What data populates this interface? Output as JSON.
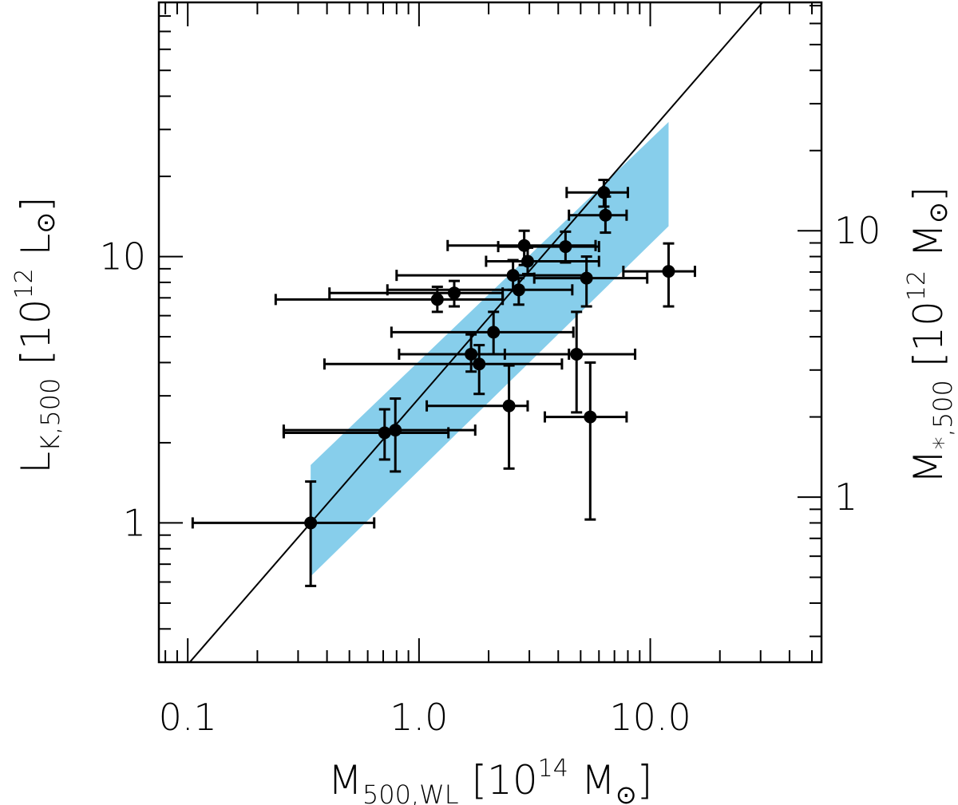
{
  "chart_data": {
    "type": "scatter",
    "xlabel": {
      "main": "M",
      "sub": "500,WL",
      "rest_open": " [10",
      "sup": "14",
      "rest_close": "   M",
      "sun": "⊙",
      "bracket": "]"
    },
    "ylabel": {
      "main": "L",
      "sub": "K,500",
      "rest_open": " [10",
      "sup": "12",
      "rest_close": " L",
      "sun": "⊙",
      "bracket": "]"
    },
    "y2label": {
      "main": "M",
      "sub": "*,500",
      "rest_open": " [10",
      "sup": "12",
      "rest_close": " M",
      "sun": "⊙",
      "bracket": "]"
    },
    "x_scale": "log",
    "y_scale": "log",
    "xlim": [
      0.075,
      55
    ],
    "ylim": [
      0.3,
      90
    ],
    "y2_factor": 0.8,
    "x_tick_labels": [
      {
        "value": 0.1,
        "label": "0.1"
      },
      {
        "value": 1.0,
        "label": "1.0"
      },
      {
        "value": 10.0,
        "label": "10.0"
      }
    ],
    "y_tick_labels": [
      {
        "value": 1,
        "label": "1"
      },
      {
        "value": 10,
        "label": "10"
      }
    ],
    "y2_tick_labels": [
      {
        "value": 1,
        "label": "1"
      },
      {
        "value": 10,
        "label": "10"
      }
    ],
    "fit_line": {
      "slope": 1.0,
      "norm_x": 0.34,
      "norm_y": 1.0,
      "color": "#000000"
    },
    "confidence_band": {
      "color": "#87CEEB",
      "x": [
        0.34,
        12.0
      ],
      "upper": [
        1.65,
        32.0
      ],
      "lower": [
        0.63,
        13.0
      ]
    },
    "points": [
      {
        "x": 0.34,
        "y": 1.0,
        "xerr": [
          0.105,
          0.64
        ],
        "yerr": [
          0.58,
          1.43
        ]
      },
      {
        "x": 0.71,
        "y": 2.18,
        "xerr": [
          0.26,
          1.34
        ],
        "yerr": [
          1.73,
          2.67
        ]
      },
      {
        "x": 0.79,
        "y": 2.23,
        "xerr": [
          0.26,
          1.75
        ],
        "yerr": [
          1.56,
          2.93
        ]
      },
      {
        "x": 1.2,
        "y": 6.9,
        "xerr": [
          0.24,
          2.3
        ],
        "yerr": [
          6.2,
          7.7
        ]
      },
      {
        "x": 1.42,
        "y": 7.3,
        "xerr": [
          0.41,
          2.3
        ],
        "yerr": [
          6.5,
          8.1
        ]
      },
      {
        "x": 1.68,
        "y": 4.3,
        "xerr": [
          0.82,
          4.45
        ],
        "yerr": [
          3.7,
          5.1
        ]
      },
      {
        "x": 1.82,
        "y": 3.95,
        "xerr": [
          0.39,
          4.15
        ],
        "yerr": [
          3.05,
          4.65
        ]
      },
      {
        "x": 2.1,
        "y": 5.2,
        "xerr": [
          0.76,
          4.65
        ],
        "yerr": [
          4.3,
          6.2
        ]
      },
      {
        "x": 2.45,
        "y": 2.75,
        "xerr": [
          1.08,
          2.95
        ],
        "yerr": [
          1.6,
          3.9
        ]
      },
      {
        "x": 2.55,
        "y": 8.5,
        "xerr": [
          0.8,
          5.3
        ],
        "yerr": [
          7.5,
          9.7
        ]
      },
      {
        "x": 2.7,
        "y": 7.5,
        "xerr": [
          0.73,
          4.6
        ],
        "yerr": [
          6.6,
          8.3
        ]
      },
      {
        "x": 2.85,
        "y": 11.0,
        "xerr": [
          1.33,
          5.8
        ],
        "yerr": [
          9.3,
          12.5
        ]
      },
      {
        "x": 2.95,
        "y": 9.6,
        "xerr": [
          1.95,
          6.0
        ],
        "yerr": [
          8.6,
          10.8
        ]
      },
      {
        "x": 4.3,
        "y": 10.9,
        "xerr": [
          2.2,
          6.0
        ],
        "yerr": [
          9.5,
          12.4
        ]
      },
      {
        "x": 4.8,
        "y": 4.3,
        "xerr": [
          2.35,
          8.6
        ],
        "yerr": [
          2.6,
          6.2
        ]
      },
      {
        "x": 5.3,
        "y": 8.3,
        "xerr": [
          3.15,
          9.7
        ],
        "yerr": [
          6.5,
          10.0
        ]
      },
      {
        "x": 5.5,
        "y": 2.5,
        "xerr": [
          3.5,
          7.9
        ],
        "yerr": [
          1.03,
          4.0
        ]
      },
      {
        "x": 6.3,
        "y": 17.4,
        "xerr": [
          4.35,
          8.0
        ],
        "yerr": [
          15.4,
          19.4
        ]
      },
      {
        "x": 6.4,
        "y": 14.3,
        "xerr": [
          4.45,
          7.9
        ],
        "yerr": [
          12.3,
          16.8
        ]
      },
      {
        "x": 12.0,
        "y": 8.8,
        "xerr": [
          7.65,
          15.6
        ],
        "yerr": [
          6.5,
          11.2
        ]
      }
    ]
  }
}
